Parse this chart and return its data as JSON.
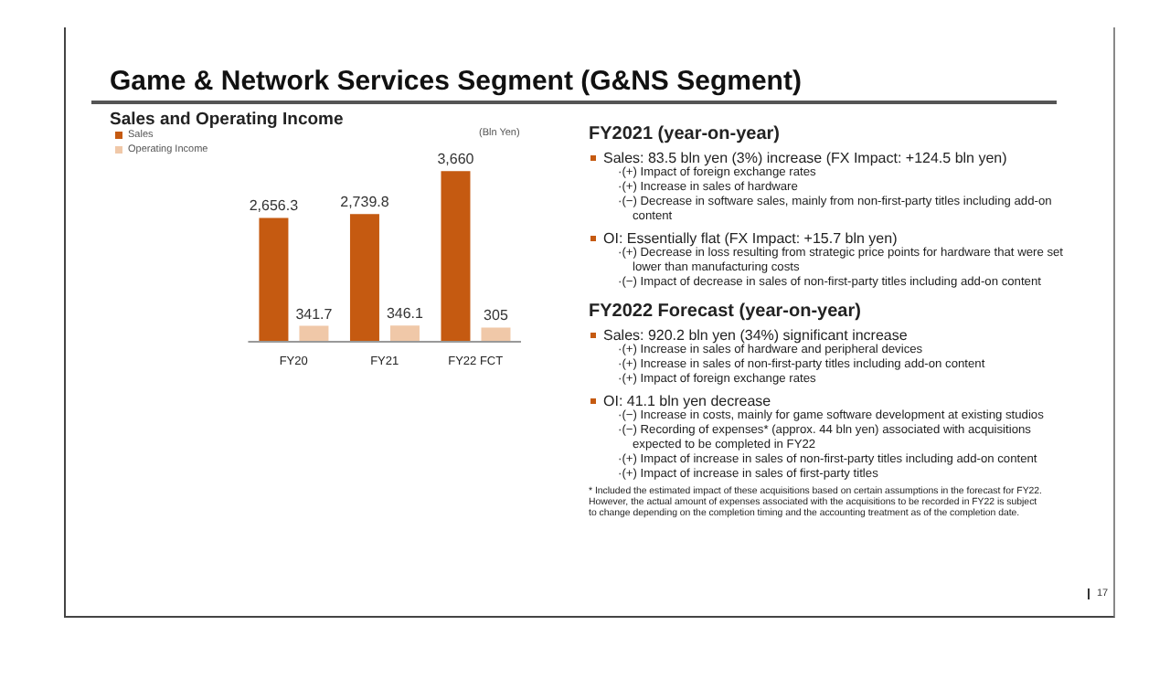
{
  "chart_data": {
    "type": "bar",
    "title": "Game & Network Services Segment (G&NS Segment)",
    "subtitle": "Sales and Operating Income",
    "ylabel": "(Bln Yen)",
    "categories": [
      "FY20",
      "FY21",
      "FY22 FCT"
    ],
    "series": [
      {
        "name": "Sales",
        "color": "#c55a11",
        "values": [
          2656.3,
          2739.8,
          3660
        ],
        "value_labels": [
          "2,656.3",
          "2,739.8",
          "3,660"
        ]
      },
      {
        "name": "Operating Income",
        "color": "#f0c8a8",
        "values": [
          341.7,
          346.1,
          305
        ],
        "value_labels": [
          "341.7",
          "346.1",
          "305"
        ]
      }
    ],
    "legend": "top left",
    "grid": false,
    "annotations": [
      "FY2021 (year-on-year)",
      "Sales: 83.5 bln yen (3%) increase (FX Impact: +124.5 bln yen)",
      "·(+) Impact of foreign exchange rates",
      "·(+) Increase in sales of hardware",
      "·(−) Decrease in software sales, mainly from non-first-party titles including add-on content",
      "OI:  Essentially flat (FX Impact: +15.7 bln yen)",
      "·(+) Decrease in loss resulting from strategic price points for hardware that were set lower than manufacturing costs",
      "·(−) Impact of decrease in sales of non-first-party titles including add-on content",
      "FY2022 Forecast (year-on-year)",
      "Sales: 920.2 bln yen (34%) significant increase",
      "·(+) Increase in sales of hardware and peripheral devices",
      "·(+) Increase in sales of non-first-party titles including add-on content",
      "·(+) Impact of foreign exchange rates",
      "OI: 41.1 bln yen decrease",
      "·(−) Increase in costs, mainly for game software development at existing studios",
      "·(−) Recording of expenses* (approx. 44 bln yen) associated with acquisitions expected to be completed in FY22",
      "·(+) Impact of increase in sales of non-first-party titles including add-on content",
      "·(+) Impact of increase in sales of first-party titles",
      "* Included the estimated impact of these acquisitions based on certain assumptions in the forecast for FY22. However, the actual amount of expenses associated with the acquisitions to be recorded in FY22 is subject to change depending on the completion timing and the accounting treatment as of the completion date.",
      "17"
    ]
  }
}
